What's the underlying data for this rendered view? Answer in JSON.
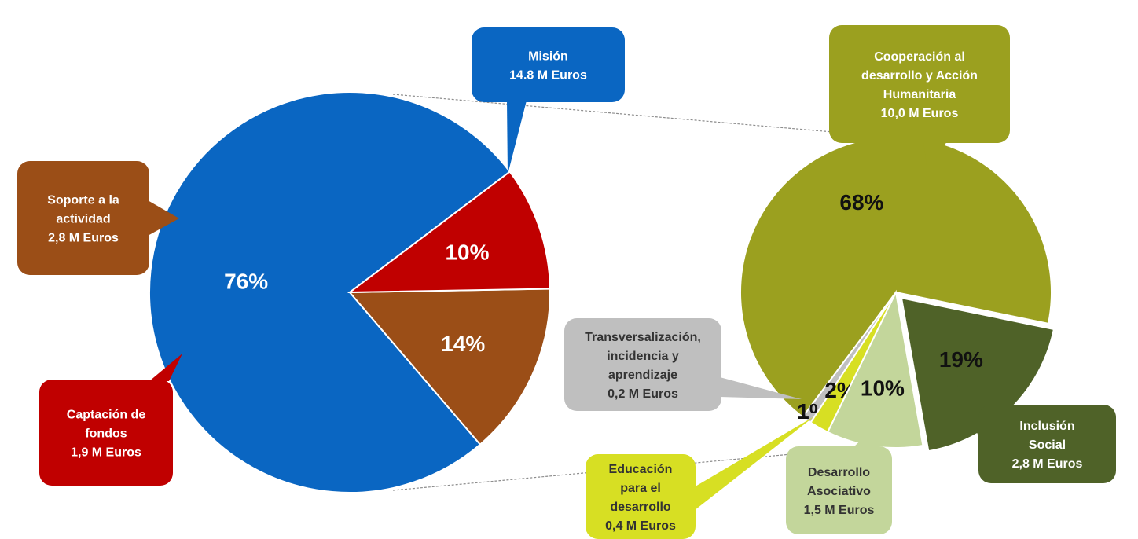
{
  "chart_data": [
    {
      "type": "pie",
      "slices": [
        {
          "key": "mision",
          "percent": 76,
          "color": "#0a66c2",
          "pct_label": "76%",
          "pct_color": "#ffffff",
          "callout": [
            "Misión",
            "14.8 M Euros"
          ],
          "callout_color": "#0a66c2",
          "callout_text_color": "#ffffff"
        },
        {
          "key": "soporte",
          "percent": 14,
          "color": "#9b4e17",
          "pct_label": "14%",
          "pct_color": "#ffffff",
          "callout": [
            "Soporte a la",
            "actividad",
            "2,8 M Euros"
          ],
          "callout_color": "#9b4e17",
          "callout_text_color": "#ffffff"
        },
        {
          "key": "captacion",
          "percent": 10,
          "color": "#c00000",
          "pct_label": "10%",
          "pct_color": "#ffffff",
          "callout": [
            "Captación de",
            "fondos",
            "1,9 M Euros"
          ],
          "callout_color": "#c00000",
          "callout_text_color": "#ffffff"
        }
      ]
    },
    {
      "type": "pie",
      "slices": [
        {
          "key": "cooperacion",
          "percent": 68,
          "color": "#9ba01f",
          "pct_label": "68%",
          "pct_color": "#111111",
          "callout": [
            "Cooperación al",
            "desarrollo y Acción",
            "Humanitaria",
            "10,0  M Euros"
          ],
          "callout_color": "#9ba01f",
          "callout_text_color": "#ffffff"
        },
        {
          "key": "inclusion",
          "percent": 19,
          "color": "#4f6228",
          "pct_label": "19%",
          "pct_color": "#111111",
          "callout": [
            "Inclusión",
            "Social",
            "2,8 M Euros"
          ],
          "callout_color": "#4f6228",
          "callout_text_color": "#ffffff"
        },
        {
          "key": "desarrollo",
          "percent": 10,
          "color": "#c3d69b",
          "pct_label": "10%",
          "pct_color": "#111111",
          "callout": [
            "Desarrollo",
            "Asociativo",
            "1,5 M Euros"
          ],
          "callout_color": "#c3d69b",
          "callout_text_color": "#333333"
        },
        {
          "key": "educacion",
          "percent": 2,
          "color": "#d7df23",
          "pct_label": "2%",
          "pct_color": "#111111",
          "callout": [
            "Educación",
            "para el",
            "desarrollo",
            "0,4 M Euros"
          ],
          "callout_color": "#d7df23",
          "callout_text_color": "#333333"
        },
        {
          "key": "transversal",
          "percent": 1,
          "color": "#bfbfbf",
          "pct_label": "1%",
          "pct_color": "#111111",
          "callout": [
            "Transversalización,",
            "incidencia y",
            "aprendizaje",
            "0,2 M Euros"
          ],
          "callout_color": "#bfbfbf",
          "callout_text_color": "#333333"
        }
      ]
    }
  ]
}
